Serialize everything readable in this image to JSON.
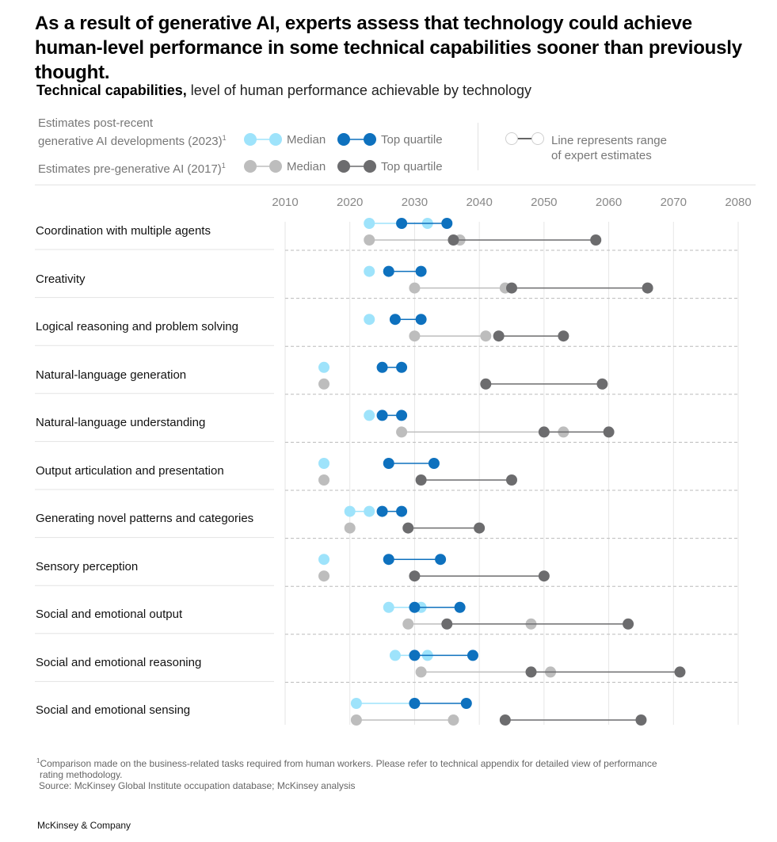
{
  "title": "As a result of generative AI, experts assess that technology could achieve human-level performance in some technical capabilities sooner than previously thought.",
  "subtitle": {
    "bold": "Technical capabilities,",
    "rest": " level of human performance achievable by technology"
  },
  "legend": {
    "post_label_line1": "Estimates post-recent",
    "post_label_line2": "generative AI developments (2023)",
    "pre_label": "Estimates pre-generative AI (2017)",
    "footnote_marker": "1",
    "median": "Median",
    "top_quartile": "Top quartile",
    "range_line1": "Line represents range",
    "range_line2": "of expert estimates"
  },
  "colors": {
    "post_median": "#9ee3fb",
    "post_top": "#0e71be",
    "pre_median": "#bdbdbd",
    "pre_top": "#6c6c6e",
    "grid": "#e6e6e6",
    "divider": "#bbbbbb"
  },
  "chart_data": {
    "type": "dumbbell",
    "x_label": "",
    "xlim": [
      2010,
      2080
    ],
    "x_ticks": [
      "2010",
      "2020",
      "2030",
      "2040",
      "2050",
      "2060",
      "2070",
      "2080"
    ],
    "series_names": [
      "2023 Median",
      "2023 Top quartile",
      "2017 Median",
      "2017 Top quartile"
    ],
    "rows": [
      {
        "label": "Coordination with multiple agents",
        "post_median": [
          2023,
          2032
        ],
        "post_top": [
          2028,
          2035
        ],
        "pre_median": [
          2023,
          2037
        ],
        "pre_top": [
          2036,
          2058
        ]
      },
      {
        "label": "Creativity",
        "post_median": [
          2023,
          2023
        ],
        "post_top": [
          2026,
          2031
        ],
        "pre_median": [
          2030,
          2044
        ],
        "pre_top": [
          2045,
          2066
        ]
      },
      {
        "label": "Logical reasoning and problem solving",
        "post_median": [
          2023,
          2023
        ],
        "post_top": [
          2027,
          2031
        ],
        "pre_median": [
          2030,
          2041
        ],
        "pre_top": [
          2043,
          2053
        ]
      },
      {
        "label": "Natural-language generation",
        "post_median": [
          2016,
          2016
        ],
        "post_top": [
          2025,
          2028
        ],
        "pre_median": [
          2016,
          2016
        ],
        "pre_top": [
          2041,
          2059
        ]
      },
      {
        "label": "Natural-language understanding",
        "post_median": [
          2023,
          2023
        ],
        "post_top": [
          2025,
          2028
        ],
        "pre_median": [
          2028,
          2053
        ],
        "pre_top": [
          2050,
          2060
        ]
      },
      {
        "label": "Output articulation and presentation",
        "post_median": [
          2016,
          2016
        ],
        "post_top": [
          2026,
          2033
        ],
        "pre_median": [
          2016,
          2016
        ],
        "pre_top": [
          2031,
          2045
        ]
      },
      {
        "label": "Generating novel patterns and categories",
        "post_median": [
          2020,
          2023
        ],
        "post_top": [
          2025,
          2028
        ],
        "pre_median": [
          2020,
          2020
        ],
        "pre_top": [
          2029,
          2040
        ]
      },
      {
        "label": "Sensory perception",
        "post_median": [
          2016,
          2016
        ],
        "post_top": [
          2026,
          2034
        ],
        "pre_median": [
          2016,
          2016
        ],
        "pre_top": [
          2030,
          2050
        ]
      },
      {
        "label": "Social and emotional output",
        "post_median": [
          2026,
          2031
        ],
        "post_top": [
          2030,
          2037
        ],
        "pre_median": [
          2029,
          2048
        ],
        "pre_top": [
          2035,
          2063
        ]
      },
      {
        "label": "Social and emotional reasoning",
        "post_median": [
          2027,
          2032
        ],
        "post_top": [
          2030,
          2039
        ],
        "pre_median": [
          2031,
          2051
        ],
        "pre_top": [
          2048,
          2071
        ]
      },
      {
        "label": "Social and emotional sensing",
        "post_median": [
          2021,
          2030
        ],
        "post_top": [
          2030,
          2038
        ],
        "pre_median": [
          2021,
          2036
        ],
        "pre_top": [
          2044,
          2065
        ]
      }
    ]
  },
  "footnote": {
    "marker": "1",
    "line1": "Comparison made on the business-related tasks required from human workers. Please refer to technical appendix for detailed view of performance",
    "line2": "rating methodology.",
    "source": "Source: McKinsey Global Institute occupation database; McKinsey analysis"
  },
  "brand": "McKinsey & Company"
}
